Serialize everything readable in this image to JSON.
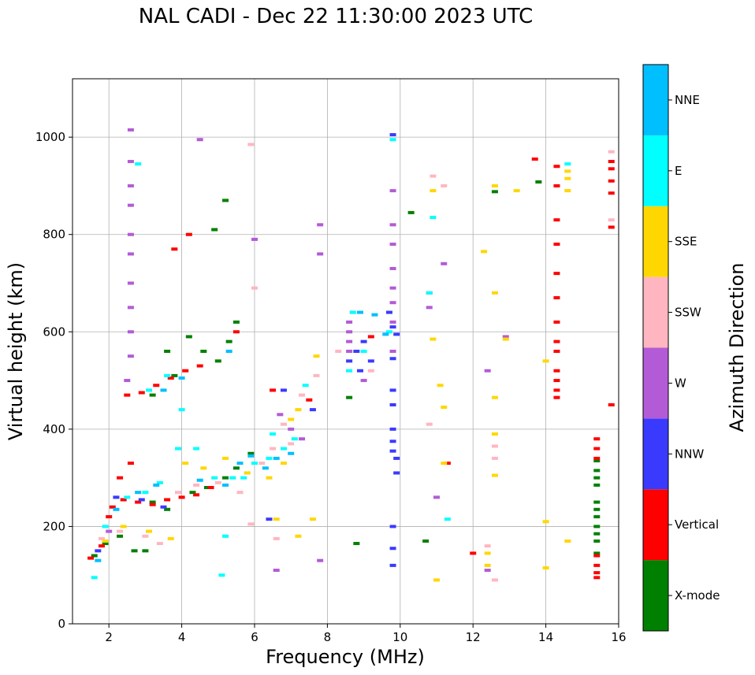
{
  "title": "NAL CADI - Dec 22 11:30:00 2023 UTC",
  "chart_data": {
    "type": "scatter",
    "title": "NAL CADI - Dec 22 11:30:00 2023 UTC",
    "xlabel": "Frequency (MHz)",
    "ylabel": "Virtual height (km)",
    "xlim": [
      1,
      16
    ],
    "ylim": [
      0,
      1120
    ],
    "xticks": [
      2,
      4,
      6,
      8,
      10,
      12,
      14,
      16
    ],
    "yticks": [
      0,
      200,
      400,
      600,
      800,
      1000
    ],
    "grid": true,
    "colorbar": {
      "label": "Azimuth Direction",
      "categories": [
        "X-mode",
        "Vertical",
        "NNW",
        "W",
        "SSW",
        "SSE",
        "E",
        "NNE"
      ],
      "colors": [
        "#008000",
        "#ff0000",
        "#3a3aff",
        "#b35bd6",
        "#ffb6c1",
        "#ffd700",
        "#00ffff",
        "#00bfff"
      ]
    },
    "series": [
      {
        "name": "X-mode",
        "points": [
          [
            1.6,
            140
          ],
          [
            1.9,
            165
          ],
          [
            2.3,
            180
          ],
          [
            2.7,
            150
          ],
          [
            3.2,
            250
          ],
          [
            3.6,
            235
          ],
          [
            4.3,
            270
          ],
          [
            4.7,
            280
          ],
          [
            5.2,
            300
          ],
          [
            5.5,
            320
          ],
          [
            5.9,
            350
          ],
          [
            3.2,
            470
          ],
          [
            3.8,
            510
          ],
          [
            4.6,
            560
          ],
          [
            5.3,
            580
          ],
          [
            5.5,
            620
          ],
          [
            4.9,
            810
          ],
          [
            5.2,
            870
          ],
          [
            8.6,
            465
          ],
          [
            10.3,
            845
          ],
          [
            12.6,
            888
          ],
          [
            13.8,
            908
          ],
          [
            15.4,
            335
          ],
          [
            15.4,
            315
          ],
          [
            15.4,
            300
          ],
          [
            15.4,
            285
          ],
          [
            15.4,
            250
          ],
          [
            15.4,
            235
          ],
          [
            15.4,
            220
          ],
          [
            15.4,
            200
          ],
          [
            15.4,
            185
          ],
          [
            15.4,
            170
          ],
          [
            15.4,
            145
          ],
          [
            10.7,
            170
          ],
          [
            8.8,
            165
          ],
          [
            3.6,
            560
          ],
          [
            4.2,
            590
          ],
          [
            5.0,
            540
          ],
          [
            3.0,
            150
          ]
        ]
      },
      {
        "name": "Vertical",
        "points": [
          [
            1.5,
            135
          ],
          [
            1.8,
            160
          ],
          [
            2.1,
            240
          ],
          [
            2.4,
            255
          ],
          [
            2.8,
            250
          ],
          [
            3.2,
            245
          ],
          [
            3.6,
            255
          ],
          [
            4.0,
            260
          ],
          [
            4.4,
            265
          ],
          [
            4.8,
            280
          ],
          [
            2.5,
            470
          ],
          [
            2.9,
            475
          ],
          [
            3.3,
            490
          ],
          [
            3.7,
            505
          ],
          [
            4.1,
            520
          ],
          [
            4.5,
            530
          ],
          [
            4.2,
            800
          ],
          [
            3.8,
            770
          ],
          [
            2.3,
            300
          ],
          [
            5.5,
            600
          ],
          [
            14.3,
            940
          ],
          [
            14.3,
            900
          ],
          [
            14.3,
            830
          ],
          [
            14.3,
            780
          ],
          [
            14.3,
            720
          ],
          [
            14.3,
            670
          ],
          [
            14.3,
            620
          ],
          [
            14.3,
            580
          ],
          [
            14.3,
            560
          ],
          [
            14.3,
            520
          ],
          [
            14.3,
            500
          ],
          [
            14.3,
            480
          ],
          [
            14.3,
            465
          ],
          [
            15.4,
            380
          ],
          [
            15.4,
            360
          ],
          [
            15.4,
            340
          ],
          [
            15.4,
            120
          ],
          [
            15.4,
            105
          ],
          [
            15.4,
            95
          ],
          [
            15.4,
            140
          ],
          [
            15.8,
            950
          ],
          [
            15.8,
            935
          ],
          [
            15.8,
            910
          ],
          [
            15.8,
            885
          ],
          [
            15.8,
            815
          ],
          [
            15.8,
            450
          ],
          [
            13.7,
            955
          ],
          [
            12.0,
            145
          ],
          [
            11.3,
            330
          ],
          [
            6.5,
            480
          ],
          [
            7.5,
            460
          ],
          [
            2.0,
            220
          ],
          [
            2.6,
            330
          ],
          [
            9.2,
            590
          ]
        ]
      },
      {
        "name": "NNW",
        "points": [
          [
            1.7,
            150
          ],
          [
            2.2,
            260
          ],
          [
            2.9,
            255
          ],
          [
            3.5,
            240
          ],
          [
            8.6,
            540
          ],
          [
            8.9,
            520
          ],
          [
            9.2,
            540
          ],
          [
            9.8,
            1005
          ],
          [
            9.8,
            610
          ],
          [
            9.8,
            545
          ],
          [
            9.8,
            480
          ],
          [
            9.8,
            450
          ],
          [
            9.8,
            400
          ],
          [
            9.8,
            375
          ],
          [
            9.8,
            355
          ],
          [
            9.9,
            340
          ],
          [
            9.9,
            310
          ],
          [
            9.8,
            200
          ],
          [
            9.8,
            155
          ],
          [
            9.8,
            120
          ],
          [
            6.4,
            215
          ],
          [
            6.8,
            480
          ],
          [
            7.6,
            440
          ],
          [
            8.8,
            560
          ],
          [
            9.0,
            580
          ],
          [
            9.7,
            640
          ],
          [
            9.9,
            595
          ]
        ]
      },
      {
        "name": "W",
        "points": [
          [
            2.0,
            190
          ],
          [
            2.6,
            1015
          ],
          [
            2.6,
            950
          ],
          [
            2.6,
            900
          ],
          [
            2.6,
            860
          ],
          [
            2.6,
            800
          ],
          [
            2.6,
            760
          ],
          [
            2.6,
            700
          ],
          [
            2.6,
            650
          ],
          [
            2.6,
            600
          ],
          [
            2.6,
            550
          ],
          [
            2.5,
            500
          ],
          [
            8.6,
            580
          ],
          [
            8.6,
            600
          ],
          [
            8.6,
            620
          ],
          [
            8.6,
            560
          ],
          [
            9.0,
            500
          ],
          [
            9.8,
            890
          ],
          [
            9.8,
            820
          ],
          [
            9.8,
            780
          ],
          [
            9.8,
            730
          ],
          [
            9.8,
            690
          ],
          [
            9.8,
            660
          ],
          [
            9.8,
            620
          ],
          [
            9.8,
            560
          ],
          [
            10.8,
            650
          ],
          [
            10.8,
            680
          ],
          [
            11.2,
            740
          ],
          [
            11.0,
            260
          ],
          [
            7.8,
            820
          ],
          [
            7.8,
            760
          ],
          [
            7.8,
            130
          ],
          [
            4.5,
            995
          ],
          [
            6.0,
            790
          ],
          [
            6.7,
            430
          ],
          [
            7.0,
            400
          ],
          [
            7.3,
            380
          ],
          [
            6.6,
            110
          ],
          [
            12.4,
            520
          ],
          [
            12.9,
            590
          ],
          [
            12.4,
            110
          ]
        ]
      },
      {
        "name": "SSW",
        "points": [
          [
            1.8,
            175
          ],
          [
            2.3,
            190
          ],
          [
            3.0,
            180
          ],
          [
            3.4,
            165
          ],
          [
            3.9,
            270
          ],
          [
            4.4,
            285
          ],
          [
            5.0,
            290
          ],
          [
            5.6,
            270
          ],
          [
            6.0,
            690
          ],
          [
            5.9,
            985
          ],
          [
            6.2,
            330
          ],
          [
            6.5,
            360
          ],
          [
            6.8,
            410
          ],
          [
            7.0,
            370
          ],
          [
            7.3,
            470
          ],
          [
            7.7,
            510
          ],
          [
            8.3,
            560
          ],
          [
            9.2,
            520
          ],
          [
            10.8,
            410
          ],
          [
            10.9,
            920
          ],
          [
            11.2,
            900
          ],
          [
            12.6,
            365
          ],
          [
            12.6,
            340
          ],
          [
            12.4,
            160
          ],
          [
            12.6,
            90
          ],
          [
            15.8,
            970
          ],
          [
            15.8,
            830
          ],
          [
            8.7,
            640
          ],
          [
            5.9,
            205
          ],
          [
            6.6,
            175
          ]
        ]
      },
      {
        "name": "SSE",
        "points": [
          [
            1.9,
            170
          ],
          [
            2.4,
            200
          ],
          [
            3.1,
            190
          ],
          [
            3.7,
            175
          ],
          [
            4.1,
            330
          ],
          [
            4.6,
            320
          ],
          [
            5.2,
            340
          ],
          [
            5.8,
            310
          ],
          [
            6.4,
            300
          ],
          [
            6.8,
            330
          ],
          [
            7.0,
            420
          ],
          [
            7.2,
            440
          ],
          [
            7.7,
            550
          ],
          [
            6.6,
            215
          ],
          [
            7.2,
            180
          ],
          [
            7.6,
            215
          ],
          [
            10.9,
            585
          ],
          [
            11.1,
            490
          ],
          [
            11.2,
            445
          ],
          [
            10.9,
            890
          ],
          [
            11.2,
            330
          ],
          [
            11.0,
            90
          ],
          [
            12.3,
            765
          ],
          [
            12.6,
            680
          ],
          [
            12.6,
            465
          ],
          [
            12.6,
            390
          ],
          [
            12.6,
            305
          ],
          [
            12.6,
            900
          ],
          [
            13.2,
            890
          ],
          [
            12.4,
            120
          ],
          [
            14.0,
            540
          ],
          [
            14.0,
            210
          ],
          [
            14.0,
            115
          ],
          [
            14.6,
            170
          ],
          [
            14.6,
            930
          ],
          [
            14.6,
            915
          ],
          [
            14.6,
            890
          ],
          [
            12.9,
            585
          ],
          [
            12.4,
            145
          ]
        ]
      },
      {
        "name": "E",
        "points": [
          [
            1.6,
            95
          ],
          [
            1.9,
            200
          ],
          [
            2.5,
            260
          ],
          [
            3.0,
            270
          ],
          [
            3.4,
            290
          ],
          [
            3.9,
            360
          ],
          [
            4.4,
            360
          ],
          [
            4.9,
            300
          ],
          [
            5.1,
            100
          ],
          [
            5.4,
            300
          ],
          [
            5.7,
            300
          ],
          [
            6.0,
            330
          ],
          [
            6.4,
            340
          ],
          [
            6.8,
            360
          ],
          [
            7.1,
            380
          ],
          [
            7.4,
            490
          ],
          [
            2.8,
            945
          ],
          [
            3.1,
            480
          ],
          [
            3.6,
            510
          ],
          [
            5.2,
            180
          ],
          [
            8.6,
            520
          ],
          [
            8.7,
            640
          ],
          [
            9.0,
            560
          ],
          [
            9.8,
            995
          ],
          [
            9.7,
            600
          ],
          [
            10.8,
            680
          ],
          [
            10.9,
            835
          ],
          [
            11.3,
            215
          ],
          [
            14.6,
            945
          ],
          [
            4.0,
            440
          ],
          [
            6.5,
            390
          ]
        ]
      },
      {
        "name": "NNE",
        "points": [
          [
            1.7,
            130
          ],
          [
            2.2,
            235
          ],
          [
            2.8,
            270
          ],
          [
            3.3,
            285
          ],
          [
            4.5,
            295
          ],
          [
            5.2,
            285
          ],
          [
            5.6,
            330
          ],
          [
            5.9,
            345
          ],
          [
            6.3,
            320
          ],
          [
            6.6,
            340
          ],
          [
            7.0,
            350
          ],
          [
            8.9,
            640
          ],
          [
            9.3,
            635
          ],
          [
            9.6,
            595
          ],
          [
            3.5,
            480
          ],
          [
            4.0,
            505
          ],
          [
            5.3,
            560
          ]
        ]
      }
    ]
  }
}
